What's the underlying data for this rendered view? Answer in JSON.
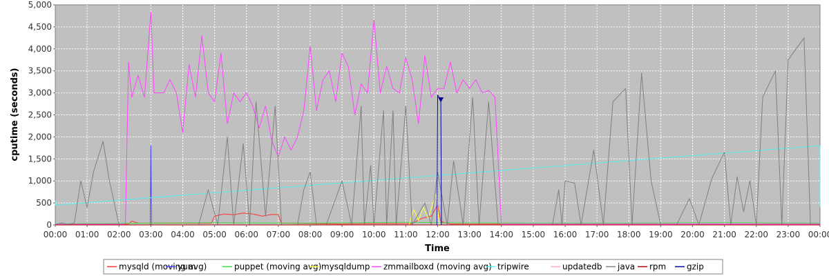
{
  "chart_data": {
    "type": "line",
    "xlabel": "Time",
    "ylabel": "cputime (seconds)",
    "ylim": [
      0,
      5000
    ],
    "xlim": [
      0,
      24
    ],
    "x_ticks": [
      "00:00",
      "01:00",
      "02:00",
      "03:00",
      "04:00",
      "05:00",
      "06:00",
      "07:00",
      "08:00",
      "09:00",
      "10:00",
      "11:00",
      "12:00",
      "13:00",
      "14:00",
      "15:00",
      "16:00",
      "17:00",
      "18:00",
      "19:00",
      "20:00",
      "21:00",
      "22:00",
      "23:00",
      "00:00"
    ],
    "y_ticks": [
      "0",
      "500",
      "1,000",
      "1,500",
      "2,000",
      "2,500",
      "3,000",
      "3,500",
      "4,000",
      "4,500",
      "5,000"
    ],
    "grid": true,
    "legend_position": "bottom",
    "series": [
      {
        "name": "mysqld (moving avg)",
        "color": "#ff3333",
        "points": [
          [
            0,
            0
          ],
          [
            2.3,
            20
          ],
          [
            2.4,
            90
          ],
          [
            2.6,
            40
          ],
          [
            4.9,
            40
          ],
          [
            5.0,
            200
          ],
          [
            5.3,
            250
          ],
          [
            5.6,
            230
          ],
          [
            5.9,
            270
          ],
          [
            6.2,
            250
          ],
          [
            6.5,
            200
          ],
          [
            6.8,
            240
          ],
          [
            7.0,
            230
          ],
          [
            7.1,
            40
          ],
          [
            9,
            20
          ],
          [
            10,
            30
          ],
          [
            11.2,
            30
          ],
          [
            11.5,
            150
          ],
          [
            11.8,
            200
          ],
          [
            12.0,
            450
          ],
          [
            12.1,
            80
          ],
          [
            12.4,
            20
          ],
          [
            14,
            20
          ],
          [
            24,
            20
          ]
        ]
      },
      {
        "name": "yum",
        "color": "#4444ff",
        "points": [
          [
            0,
            0
          ],
          [
            2.98,
            0
          ],
          [
            3.0,
            1800
          ],
          [
            3.02,
            0
          ],
          [
            24,
            0
          ]
        ]
      },
      {
        "name": "puppet (moving avg)",
        "color": "#44dd44",
        "points": [
          [
            0,
            30
          ],
          [
            3,
            40
          ],
          [
            5,
            50
          ],
          [
            8,
            40
          ],
          [
            11,
            60
          ],
          [
            12,
            50
          ],
          [
            15,
            40
          ],
          [
            18,
            40
          ],
          [
            21,
            50
          ],
          [
            24,
            40
          ]
        ]
      },
      {
        "name": "mysqldump",
        "color": "#ffff44",
        "points": [
          [
            11.1,
            0
          ],
          [
            11.25,
            350
          ],
          [
            11.4,
            100
          ],
          [
            11.55,
            400
          ],
          [
            11.7,
            150
          ],
          [
            11.85,
            500
          ],
          [
            11.95,
            700
          ],
          [
            12.0,
            400
          ],
          [
            12.05,
            0
          ]
        ]
      },
      {
        "name": "zmmailboxd (moving avg)",
        "color": "#ff44ff",
        "points": [
          [
            0,
            20
          ],
          [
            2.2,
            20
          ],
          [
            2.3,
            3700
          ],
          [
            2.4,
            2900
          ],
          [
            2.6,
            3400
          ],
          [
            2.8,
            2900
          ],
          [
            3.0,
            4830
          ],
          [
            3.1,
            3000
          ],
          [
            3.4,
            3000
          ],
          [
            3.6,
            3300
          ],
          [
            3.8,
            3000
          ],
          [
            4.0,
            2100
          ],
          [
            4.2,
            3650
          ],
          [
            4.4,
            2900
          ],
          [
            4.6,
            4300
          ],
          [
            4.8,
            3000
          ],
          [
            5.0,
            2800
          ],
          [
            5.2,
            3900
          ],
          [
            5.4,
            2300
          ],
          [
            5.6,
            3000
          ],
          [
            5.8,
            2800
          ],
          [
            6.0,
            3000
          ],
          [
            6.2,
            2700
          ],
          [
            6.4,
            2200
          ],
          [
            6.6,
            2700
          ],
          [
            6.8,
            1900
          ],
          [
            7.0,
            1550
          ],
          [
            7.2,
            2000
          ],
          [
            7.4,
            1700
          ],
          [
            7.6,
            2000
          ],
          [
            7.8,
            2600
          ],
          [
            8.0,
            4050
          ],
          [
            8.2,
            2600
          ],
          [
            8.4,
            3300
          ],
          [
            8.6,
            3500
          ],
          [
            8.8,
            2800
          ],
          [
            9.0,
            3900
          ],
          [
            9.2,
            3600
          ],
          [
            9.4,
            2500
          ],
          [
            9.6,
            3200
          ],
          [
            9.8,
            3000
          ],
          [
            10.0,
            4650
          ],
          [
            10.2,
            3000
          ],
          [
            10.4,
            3600
          ],
          [
            10.6,
            3100
          ],
          [
            10.8,
            3000
          ],
          [
            11.0,
            3800
          ],
          [
            11.2,
            3300
          ],
          [
            11.4,
            2300
          ],
          [
            11.6,
            3850
          ],
          [
            11.8,
            2900
          ],
          [
            12.0,
            3100
          ],
          [
            12.2,
            3100
          ],
          [
            12.4,
            3700
          ],
          [
            12.6,
            3000
          ],
          [
            12.8,
            3300
          ],
          [
            13.0,
            3100
          ],
          [
            13.2,
            3300
          ],
          [
            13.4,
            3000
          ],
          [
            13.6,
            3050
          ],
          [
            13.8,
            2900
          ],
          [
            14.0,
            20
          ],
          [
            24,
            20
          ]
        ]
      },
      {
        "name": "tripwire",
        "color": "#55eeee",
        "points": [
          [
            0,
            550
          ],
          [
            0,
            450
          ],
          [
            24,
            1800
          ],
          [
            24,
            400
          ]
        ]
      },
      {
        "name": "updatedb",
        "color": "#ffaacc",
        "points": [
          [
            0,
            0
          ],
          [
            24,
            0
          ]
        ]
      },
      {
        "name": "java",
        "color": "#808080",
        "points": [
          [
            0,
            0
          ],
          [
            0.2,
            50
          ],
          [
            0.4,
            0
          ],
          [
            0.6,
            50
          ],
          [
            0.8,
            1000
          ],
          [
            1.0,
            400
          ],
          [
            1.2,
            1200
          ],
          [
            1.5,
            1900
          ],
          [
            1.7,
            1000
          ],
          [
            2.0,
            0
          ],
          [
            3.0,
            0
          ],
          [
            4.0,
            0
          ],
          [
            4.5,
            0
          ],
          [
            4.8,
            800
          ],
          [
            5.1,
            0
          ],
          [
            5.4,
            2000
          ],
          [
            5.6,
            0
          ],
          [
            5.9,
            1850
          ],
          [
            6.1,
            0
          ],
          [
            6.3,
            2800
          ],
          [
            6.6,
            200
          ],
          [
            6.9,
            2700
          ],
          [
            7.1,
            0
          ],
          [
            7.6,
            0
          ],
          [
            7.8,
            800
          ],
          [
            8.0,
            1200
          ],
          [
            8.2,
            0
          ],
          [
            8.5,
            0
          ],
          [
            9.0,
            1000
          ],
          [
            9.3,
            0
          ],
          [
            9.6,
            2700
          ],
          [
            9.7,
            0
          ],
          [
            9.9,
            1350
          ],
          [
            10.0,
            0
          ],
          [
            10.3,
            2600
          ],
          [
            10.4,
            0
          ],
          [
            10.6,
            2600
          ],
          [
            10.7,
            0
          ],
          [
            11.0,
            2700
          ],
          [
            11.2,
            0
          ],
          [
            11.6,
            500
          ],
          [
            11.8,
            0
          ],
          [
            12.0,
            1200
          ],
          [
            12.3,
            0
          ],
          [
            12.5,
            1450
          ],
          [
            12.8,
            0
          ],
          [
            13.1,
            2900
          ],
          [
            13.3,
            0
          ],
          [
            13.6,
            2800
          ],
          [
            13.9,
            0
          ],
          [
            15.0,
            0
          ],
          [
            15.6,
            0
          ],
          [
            15.8,
            800
          ],
          [
            15.9,
            0
          ],
          [
            16.0,
            1000
          ],
          [
            16.3,
            950
          ],
          [
            16.5,
            0
          ],
          [
            16.9,
            1700
          ],
          [
            17.2,
            0
          ],
          [
            17.5,
            2800
          ],
          [
            17.9,
            3100
          ],
          [
            18.1,
            0
          ],
          [
            18.4,
            3450
          ],
          [
            18.7,
            1000
          ],
          [
            19.0,
            0
          ],
          [
            19.5,
            0
          ],
          [
            19.9,
            600
          ],
          [
            20.2,
            0
          ],
          [
            20.6,
            1050
          ],
          [
            21.0,
            1650
          ],
          [
            21.2,
            0
          ],
          [
            21.4,
            1100
          ],
          [
            21.6,
            300
          ],
          [
            21.8,
            1000
          ],
          [
            22.0,
            0
          ],
          [
            22.2,
            2900
          ],
          [
            22.6,
            3500
          ],
          [
            22.8,
            0
          ],
          [
            23.0,
            3750
          ],
          [
            23.5,
            4250
          ],
          [
            23.7,
            0
          ],
          [
            24.0,
            0
          ]
        ]
      },
      {
        "name": "rpm",
        "color": "#aa0000",
        "points": [
          [
            0,
            0
          ],
          [
            24,
            0
          ]
        ]
      },
      {
        "name": "gzip",
        "color": "#000099",
        "points": [
          [
            11.98,
            0
          ],
          [
            12.0,
            2950
          ],
          [
            12.1,
            2850
          ],
          [
            12.12,
            0
          ]
        ]
      }
    ]
  }
}
